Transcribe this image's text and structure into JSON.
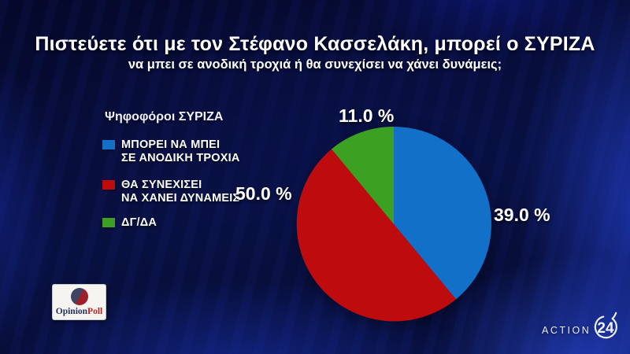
{
  "title": "Πιστεύετε ότι με τον Στέφανο Κασσελάκη, μπορεί ο ΣΥΡΙΖΑ",
  "subtitle": "να μπει σε ανοδική τροχιά ή θα συνεχίσει να χάνει δυνάμεις;",
  "legend": {
    "title": "Ψηφοφόροι ΣΥΡΙΖΑ",
    "items": [
      {
        "line1": "ΜΠΟΡΕΙ ΝΑ ΜΠΕΙ",
        "line2": "ΣΕ ΑΝΟΔΙΚΗ ΤΡΟΧΙΑ"
      },
      {
        "line1": "ΘΑ ΣΥΝΕΧΙΣΕΙ",
        "line2": "ΝΑ ΧΑΝΕΙ ΔΥΝΑΜΕΙΣ"
      },
      {
        "line1": "ΔΓ/ΔΑ",
        "line2": ""
      }
    ]
  },
  "chart_data": {
    "type": "pie",
    "labels": [
      "ΜΠΟΡΕΙ ΝΑ ΜΠΕΙ ΣΕ ΑΝΟΔΙΚΗ ΤΡΟΧΙΑ",
      "ΘΑ ΣΥΝΕΧΙΣΕΙ ΝΑ ΧΑΝΕΙ ΔΥΝΑΜΕΙΣ",
      "ΔΓ/ΔΑ"
    ],
    "values": [
      39.0,
      50.0,
      11.0
    ],
    "display_labels": [
      "39.0 %",
      "50.0 %",
      "11.0 %"
    ],
    "colors": [
      "#1270c8",
      "#be0b0e",
      "#3ca023"
    ],
    "start_angle_deg": 0,
    "direction": "clockwise",
    "legend_position": "left",
    "audience_note": "Ψηφοφόροι ΣΥΡΙΖΑ"
  },
  "logos": {
    "opinion_poll": {
      "part1": "Opinion",
      "part2": "Poll"
    },
    "action24": {
      "word": "ACTION",
      "number": "24"
    }
  }
}
